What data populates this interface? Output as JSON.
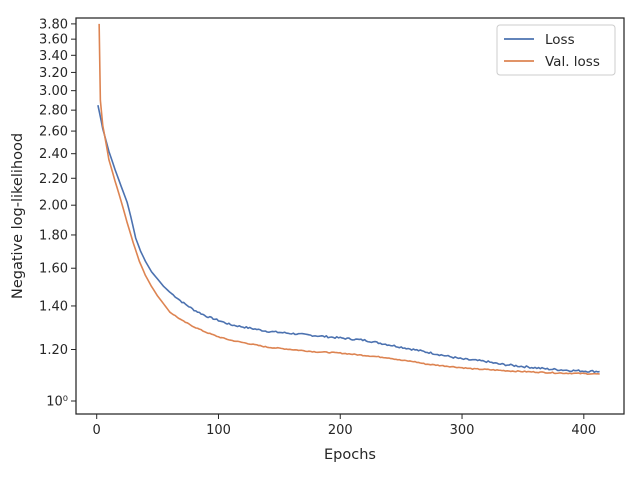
{
  "chart_data": {
    "type": "line",
    "xlabel": "Epochs",
    "ylabel": "Negative log-likelihood",
    "y_scale": "log",
    "xlim": [
      -17,
      433
    ],
    "ylim": [
      0.955,
      3.88
    ],
    "grid": false,
    "legend_position": "top-right",
    "x_ticks": [
      0,
      100,
      200,
      300,
      400
    ],
    "x_tick_labels": [
      "0",
      "100",
      "200",
      "300",
      "400"
    ],
    "y_ticks": [
      1.0,
      1.2,
      1.4,
      1.6,
      1.8,
      2.0,
      2.2,
      2.4,
      2.6,
      2.8,
      3.0,
      3.2,
      3.4,
      3.6,
      3.8
    ],
    "y_tick_labels": [
      "10⁰",
      "1.20",
      "1.40",
      "1.60",
      "1.80",
      "2.00",
      "2.20",
      "2.40",
      "2.60",
      "2.80",
      "3.00",
      "3.20",
      "3.40",
      "3.60",
      "3.80"
    ],
    "series": [
      {
        "name": "Loss",
        "color": "#4c72b0",
        "x": [
          1,
          5,
          10,
          15,
          20,
          25,
          28,
          32,
          36,
          40,
          45,
          50,
          55,
          60,
          70,
          80,
          90,
          100,
          110,
          120,
          130,
          140,
          150,
          160,
          170,
          180,
          190,
          200,
          210,
          220,
          230,
          240,
          250,
          260,
          270,
          280,
          290,
          300,
          310,
          320,
          330,
          340,
          350,
          360,
          370,
          380,
          390,
          400,
          413
        ],
        "y": [
          2.85,
          2.62,
          2.42,
          2.27,
          2.14,
          2.02,
          1.92,
          1.78,
          1.7,
          1.64,
          1.58,
          1.54,
          1.5,
          1.47,
          1.42,
          1.38,
          1.35,
          1.33,
          1.31,
          1.3,
          1.29,
          1.28,
          1.275,
          1.27,
          1.265,
          1.26,
          1.255,
          1.25,
          1.245,
          1.24,
          1.23,
          1.22,
          1.21,
          1.2,
          1.19,
          1.18,
          1.17,
          1.16,
          1.155,
          1.15,
          1.14,
          1.135,
          1.13,
          1.125,
          1.12,
          1.117,
          1.114,
          1.112,
          1.11
        ]
      },
      {
        "name": "Val. loss",
        "color": "#dd8452",
        "x": [
          2,
          3,
          5,
          10,
          15,
          20,
          25,
          30,
          35,
          40,
          45,
          50,
          55,
          60,
          70,
          80,
          90,
          100,
          110,
          120,
          130,
          140,
          150,
          160,
          170,
          180,
          190,
          200,
          210,
          220,
          230,
          240,
          250,
          260,
          270,
          280,
          290,
          300,
          310,
          320,
          330,
          340,
          350,
          360,
          370,
          380,
          390,
          400,
          413
        ],
        "y": [
          3.8,
          2.9,
          2.65,
          2.35,
          2.18,
          2.03,
          1.88,
          1.75,
          1.64,
          1.56,
          1.5,
          1.45,
          1.41,
          1.37,
          1.33,
          1.3,
          1.275,
          1.255,
          1.24,
          1.23,
          1.22,
          1.21,
          1.205,
          1.2,
          1.195,
          1.19,
          1.188,
          1.185,
          1.18,
          1.175,
          1.17,
          1.165,
          1.155,
          1.15,
          1.14,
          1.135,
          1.13,
          1.125,
          1.12,
          1.118,
          1.115,
          1.112,
          1.11,
          1.108,
          1.106,
          1.104,
          1.103,
          1.102,
          1.1
        ]
      }
    ]
  }
}
